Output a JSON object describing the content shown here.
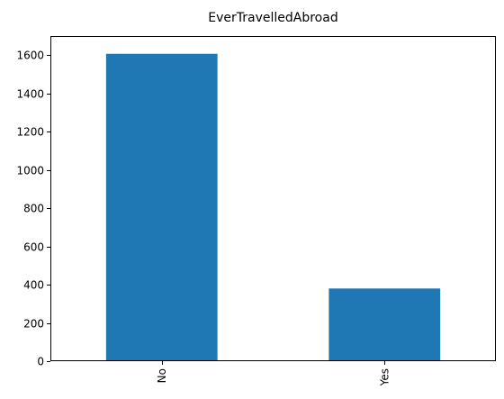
{
  "chart_data": {
    "type": "bar",
    "title": "EverTravelledAbroad",
    "xlabel": "",
    "ylabel": "",
    "categories": [
      "No",
      "Yes"
    ],
    "values": [
      1607,
      380
    ],
    "ylim": [
      0,
      1700
    ],
    "yticks": [
      0,
      200,
      400,
      600,
      800,
      1000,
      1200,
      1400,
      1600
    ],
    "bar_color": "#1f77b4",
    "grid": false,
    "legend": false,
    "x_tick_rotation": "vertical"
  }
}
